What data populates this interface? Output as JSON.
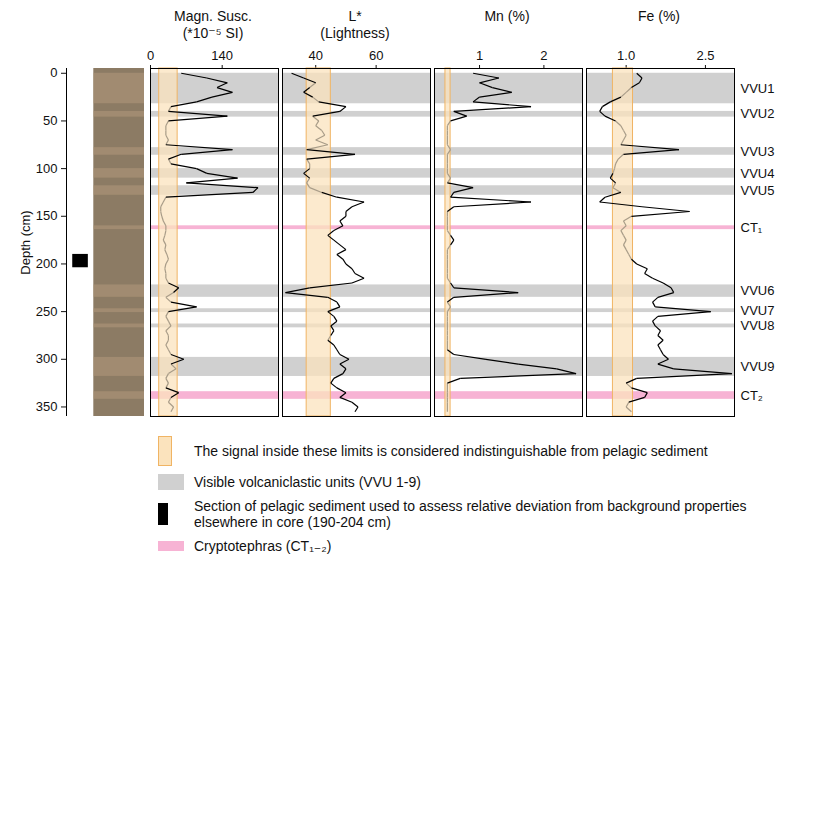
{
  "chart_data": {
    "type": "line",
    "y_label": "Depth (cm)",
    "ylim": [
      -5,
      360
    ],
    "yticks": [
      0,
      50,
      100,
      150,
      200,
      250,
      300,
      350
    ],
    "depth": [
      0,
      5,
      10,
      15,
      20,
      25,
      30,
      35,
      40,
      45,
      50,
      55,
      60,
      65,
      70,
      75,
      80,
      85,
      90,
      95,
      100,
      105,
      110,
      115,
      120,
      125,
      130,
      135,
      140,
      145,
      150,
      155,
      160,
      165,
      170,
      175,
      180,
      185,
      190,
      195,
      200,
      205,
      210,
      215,
      220,
      225,
      230,
      235,
      240,
      245,
      250,
      255,
      260,
      265,
      270,
      275,
      280,
      285,
      290,
      295,
      300,
      305,
      310,
      315,
      320,
      325,
      330,
      335,
      340,
      345,
      350,
      355
    ],
    "pelagic_section": [
      190,
      204
    ],
    "panels": [
      {
        "title": "Magn. Susc.",
        "subtitle": "(*10⁻⁵ SI)",
        "xlim": [
          0,
          250
        ],
        "xticks": [
          0,
          140
        ],
        "band": [
          17,
          53
        ],
        "colors": [
          "#000000",
          "#a89c88"
        ],
        "values": [
          60,
          110,
          150,
          130,
          160,
          120,
          90,
          40,
          35,
          150,
          35,
          30,
          30,
          30,
          35,
          30,
          160,
          60,
          35,
          40,
          90,
          110,
          170,
          70,
          210,
          200,
          30,
          25,
          20,
          20,
          22,
          25,
          30,
          30,
          28,
          25,
          30,
          28,
          32,
          35,
          30,
          28,
          30,
          30,
          35,
          55,
          45,
          30,
          40,
          90,
          35,
          30,
          35,
          40,
          30,
          35,
          35,
          30,
          35,
          40,
          65,
          40,
          50,
          35,
          30,
          35,
          30,
          55,
          40,
          35,
          45,
          40
        ]
      },
      {
        "title": "L*",
        "subtitle": "(Lightness)",
        "xlim": [
          29,
          78
        ],
        "xticks": [
          40,
          60
        ],
        "band": [
          37,
          45
        ],
        "colors": [
          "#000000",
          "#a89c88"
        ],
        "values": [
          32,
          36,
          40,
          38,
          36,
          39,
          41,
          50,
          48,
          39,
          41,
          40,
          42,
          43,
          40,
          44,
          37,
          53,
          37,
          38,
          38,
          36,
          38,
          37,
          38,
          42,
          47,
          56,
          52,
          50,
          50,
          48,
          49,
          46,
          44,
          46,
          48,
          50,
          47,
          49,
          50,
          52,
          53,
          56,
          52,
          38,
          30,
          44,
          47,
          48,
          44,
          46,
          47,
          45,
          46,
          45,
          44,
          46,
          47,
          48,
          51,
          48,
          50,
          49,
          46,
          45,
          47,
          50,
          48,
          52,
          54,
          53
        ]
      },
      {
        "title": "Mn (%)",
        "subtitle": "",
        "xlim": [
          0.3,
          2.6
        ],
        "xticks": [
          1,
          2
        ],
        "band": [
          0.47,
          0.55
        ],
        "colors": [
          "#000000",
          "#a89c88"
        ],
        "values": [
          0.9,
          1.3,
          1.0,
          1.2,
          1.5,
          1.0,
          0.9,
          1.8,
          0.6,
          0.8,
          0.55,
          0.5,
          0.5,
          0.5,
          0.5,
          0.5,
          0.55,
          0.5,
          0.5,
          0.5,
          0.5,
          0.5,
          0.55,
          0.5,
          0.9,
          0.6,
          0.55,
          1.8,
          0.6,
          0.5,
          0.5,
          0.5,
          0.5,
          0.5,
          0.55,
          0.6,
          0.55,
          0.5,
          0.5,
          0.5,
          0.5,
          0.5,
          0.5,
          0.5,
          0.55,
          0.6,
          1.6,
          0.6,
          0.5,
          0.55,
          0.5,
          0.5,
          0.5,
          0.5,
          0.5,
          0.5,
          0.5,
          0.5,
          0.5,
          0.6,
          1.1,
          1.6,
          2.2,
          2.5,
          0.7,
          0.5,
          0.5,
          0.5,
          0.5,
          0.5,
          0.5,
          0.5
        ]
      },
      {
        "title": "Fe (%)",
        "subtitle": "",
        "xlim": [
          0.25,
          3.05
        ],
        "xticks": [
          {
            "value": 1,
            "label": "1.0"
          },
          2.5
        ],
        "band": [
          0.75,
          1.13
        ],
        "colors": [
          "#000000",
          "#a89c88"
        ],
        "values": [
          1.2,
          1.3,
          1.25,
          1.1,
          1.0,
          0.9,
          0.7,
          0.55,
          0.5,
          0.6,
          0.8,
          0.9,
          0.95,
          1.0,
          0.95,
          0.9,
          2.0,
          0.95,
          0.85,
          0.8,
          0.78,
          0.75,
          0.7,
          0.8,
          0.75,
          0.9,
          0.6,
          0.5,
          1.3,
          2.2,
          1.1,
          0.95,
          1.0,
          0.9,
          0.95,
          1.0,
          0.95,
          1.0,
          1.05,
          1.1,
          1.2,
          1.4,
          1.35,
          1.5,
          1.7,
          1.85,
          1.9,
          1.6,
          1.5,
          1.55,
          2.6,
          1.6,
          1.5,
          1.55,
          1.65,
          1.6,
          1.7,
          1.6,
          1.65,
          1.7,
          1.8,
          1.6,
          1.9,
          3.0,
          1.2,
          1.0,
          1.1,
          1.4,
          1.35,
          1.05,
          1.0,
          1.1
        ]
      }
    ],
    "units": [
      {
        "label": "VVU1",
        "y": [
          0,
          32
        ],
        "color": "#d0d0d0"
      },
      {
        "label": "VVU2",
        "y": [
          40,
          46
        ],
        "color": "#d0d0d0"
      },
      {
        "label": "VVU3",
        "y": [
          78,
          86
        ],
        "color": "#d0d0d0"
      },
      {
        "label": "VVU4",
        "y": [
          100,
          110
        ],
        "color": "#d0d0d0"
      },
      {
        "label": "VVU5",
        "y": [
          118,
          128
        ],
        "color": "#d0d0d0"
      },
      {
        "label": "CT₁",
        "y": [
          160,
          164
        ],
        "color": "#f7b3d4"
      },
      {
        "label": "VVU6",
        "y": [
          222,
          235
        ],
        "color": "#d0d0d0"
      },
      {
        "label": "VVU7",
        "y": [
          247,
          251
        ],
        "color": "#d0d0d0"
      },
      {
        "label": "VVU8",
        "y": [
          263,
          267
        ],
        "color": "#d0d0d0"
      },
      {
        "label": "VVU9",
        "y": [
          298,
          318
        ],
        "color": "#d0d0d0"
      },
      {
        "label": "CT₂",
        "y": [
          334,
          342
        ],
        "color": "#f7b3d4"
      }
    ],
    "legend": "bottom",
    "legend_items": [
      {
        "label": "The signal inside these limits is considered indistinguishable from pelagic sediment",
        "color": "#fbe3bd"
      },
      {
        "label": "Visible volcaniclastic units (VVU 1-9)",
        "color": "#d0d0d0"
      },
      {
        "label": "Section of pelagic sediment used to assess relative deviation from background properties elsewhere in core (190-204 cm)",
        "color": "#000000"
      },
      {
        "label": "Cryptotephras (CT₁₋₂)",
        "color": "#f7b3d4"
      }
    ]
  }
}
